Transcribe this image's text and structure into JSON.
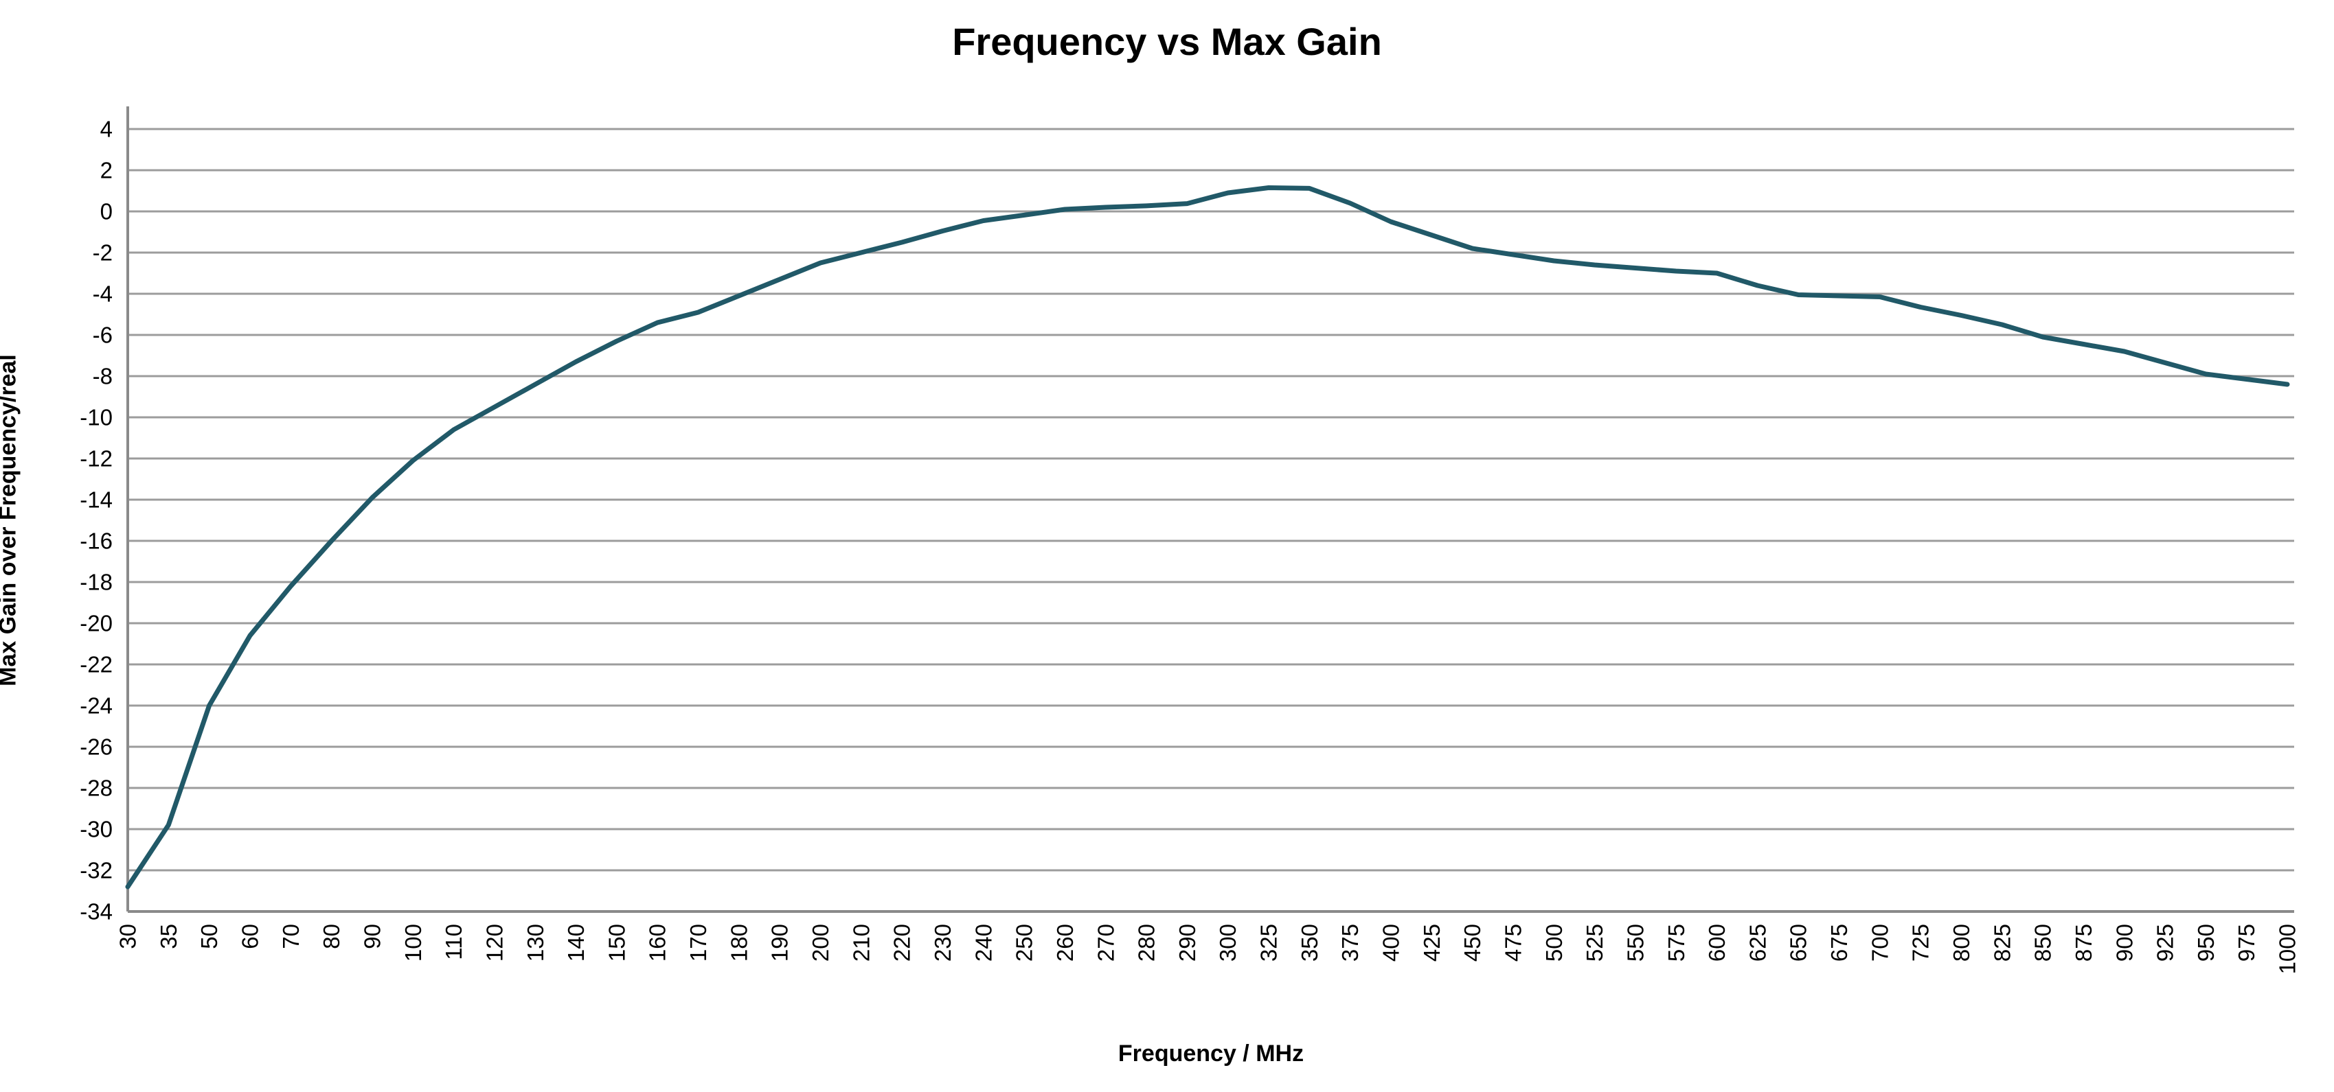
{
  "title": "Frequency vs Max Gain",
  "x_axis": {
    "title": "Frequency / MHz"
  },
  "y_axis": {
    "title": "Max Gain over Frequency/real"
  },
  "colors": {
    "line": "#215968",
    "gridline": "#9c9c9c",
    "axis": "#8a8a8a",
    "text": "#000000",
    "background": "#ffffff"
  },
  "chart_data": {
    "type": "line",
    "title": "Frequency vs Max Gain",
    "xlabel": "Frequency / MHz",
    "ylabel": "Max Gain over Frequency/real",
    "ylim": [
      -34,
      4
    ],
    "ytick_step": 2,
    "grid": "horizontal-only",
    "legend_position": "none",
    "x_tick_label_rotation_deg": 90,
    "categories": [
      30,
      35,
      50,
      60,
      70,
      80,
      90,
      100,
      110,
      120,
      130,
      140,
      150,
      160,
      170,
      180,
      190,
      200,
      210,
      220,
      230,
      240,
      250,
      260,
      270,
      280,
      290,
      300,
      325,
      350,
      375,
      400,
      425,
      450,
      475,
      500,
      525,
      550,
      575,
      600,
      625,
      650,
      675,
      700,
      725,
      800,
      825,
      850,
      875,
      900,
      925,
      950,
      975,
      1000
    ],
    "values": [
      -32.8,
      -29.8,
      -24.0,
      -20.6,
      -18.2,
      -16.0,
      -13.9,
      -12.1,
      -10.6,
      -9.5,
      -8.4,
      -7.3,
      -6.3,
      -5.4,
      -4.9,
      -4.1,
      -3.3,
      -2.5,
      -2.0,
      -1.5,
      -0.95,
      -0.45,
      -0.18,
      0.1,
      0.2,
      0.27,
      0.38,
      0.9,
      1.15,
      1.12,
      0.4,
      -0.5,
      -1.15,
      -1.8,
      -2.1,
      -2.4,
      -2.6,
      -2.75,
      -2.9,
      -3.0,
      -3.6,
      -4.05,
      -4.1,
      -4.15,
      -4.65,
      -5.05,
      -5.5,
      -6.1,
      -6.45,
      -6.8,
      -7.35,
      -7.9,
      -8.15,
      -8.4
    ]
  }
}
